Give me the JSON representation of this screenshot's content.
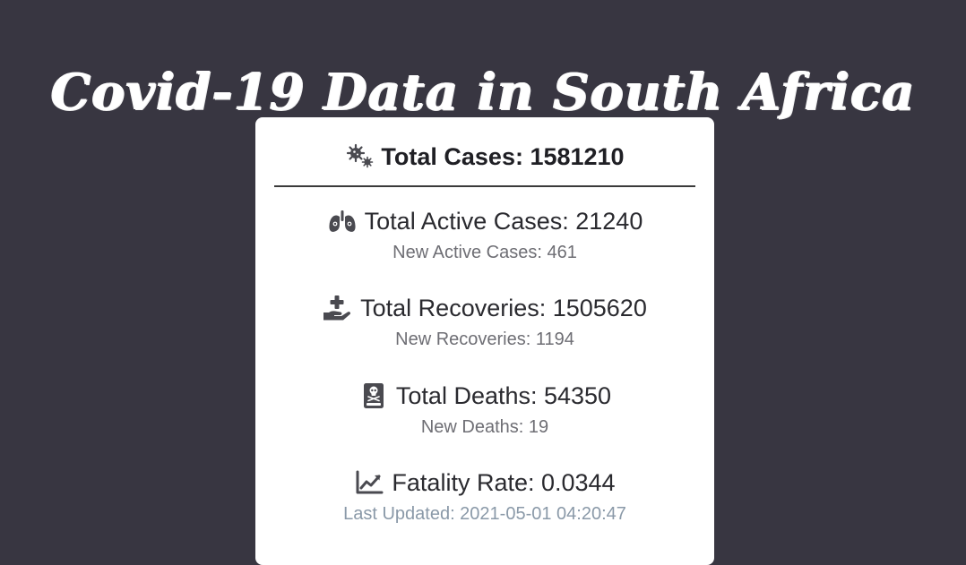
{
  "page": {
    "title": "Covid-19 Data in South Africa"
  },
  "card": {
    "total_cases": "Total Cases: 1581210",
    "stats": [
      {
        "icon": "lungs-virus-icon",
        "main": "Total Active Cases: 21240",
        "sub": "New Active Cases: 461"
      },
      {
        "icon": "hand-holding-medical-icon",
        "main": "Total Recoveries: 1505620",
        "sub": "New Recoveries: 1194"
      },
      {
        "icon": "book-skull-icon",
        "main": "Total Deaths: 54350",
        "sub": "New Deaths: 19"
      },
      {
        "icon": "chart-line-icon",
        "main": "Fatality Rate: 0.0344",
        "sub": "Last Updated: 2021-05-01 04:20:47"
      }
    ],
    "total_icon": "virus-icon"
  },
  "colors": {
    "background": "#383641",
    "card": "#ffffff",
    "text_primary": "#2a2a2f",
    "text_secondary": "#6e6e74",
    "updated_text": "#8a99a8"
  }
}
